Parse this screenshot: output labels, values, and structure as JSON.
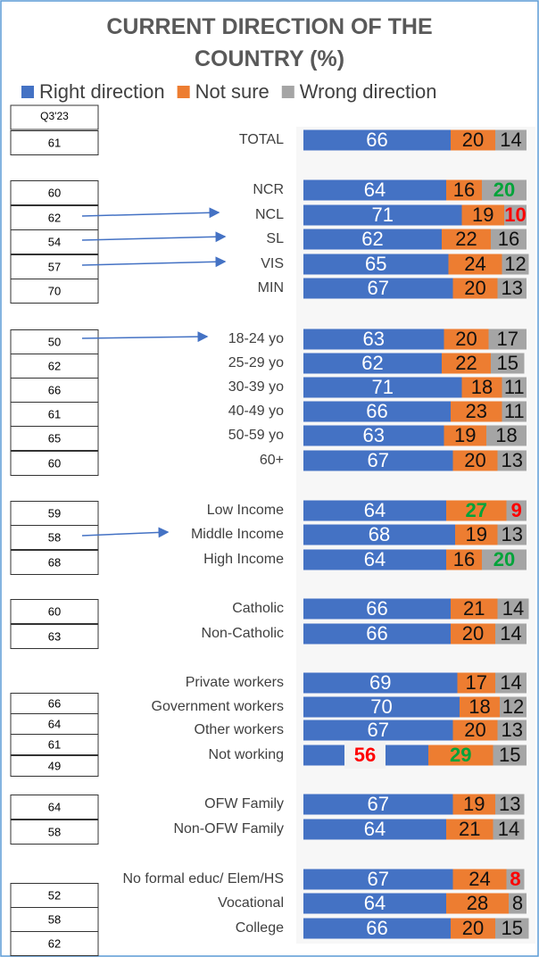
{
  "chart_data": {
    "type": "stacked_bar_horizontal",
    "title": "CURRENT DIRECTION OF THE COUNTRY (%)",
    "categories": [
      "TOTAL",
      "NCR",
      "NCL",
      "SL",
      "VIS",
      "MIN",
      "18-24 yo",
      "25-29 yo",
      "30-39 yo",
      "40-49 yo",
      "50-59 yo",
      "60+",
      "Low Income",
      "Middle Income",
      "High Income",
      "Catholic",
      "Non-Catholic",
      "Private workers",
      "Government workers",
      "Other workers",
      "Not working",
      "OFW Family",
      "Non-OFW Family",
      "No formal educ/ Elem/HS",
      "Vocational",
      "College"
    ],
    "series": [
      {
        "name": "Right direction",
        "color": "#4472c4",
        "values": [
          66,
          64,
          71,
          62,
          65,
          67,
          63,
          62,
          71,
          66,
          63,
          67,
          64,
          68,
          64,
          66,
          66,
          69,
          70,
          67,
          56,
          67,
          64,
          67,
          64,
          66
        ]
      },
      {
        "name": "Not sure",
        "color": "#ed7d31",
        "values": [
          20,
          16,
          19,
          22,
          24,
          20,
          20,
          22,
          18,
          23,
          19,
          20,
          27,
          19,
          16,
          21,
          20,
          17,
          18,
          20,
          29,
          19,
          21,
          24,
          28,
          20
        ]
      },
      {
        "name": "Wrong direction",
        "color": "#a5a5a5",
        "values": [
          14,
          20,
          10,
          16,
          12,
          13,
          17,
          15,
          11,
          11,
          18,
          13,
          9,
          13,
          20,
          14,
          14,
          14,
          12,
          13,
          15,
          13,
          14,
          8,
          8,
          15
        ]
      }
    ],
    "xlim": [
      0,
      100
    ],
    "previous": {
      "header": "Q3'23",
      "values": [
        61,
        60,
        62,
        54,
        57,
        70,
        50,
        62,
        66,
        61,
        65,
        60,
        59,
        58,
        68,
        60,
        63,
        66,
        64,
        61,
        49,
        64,
        58,
        52,
        58,
        62
      ]
    }
  }
}
